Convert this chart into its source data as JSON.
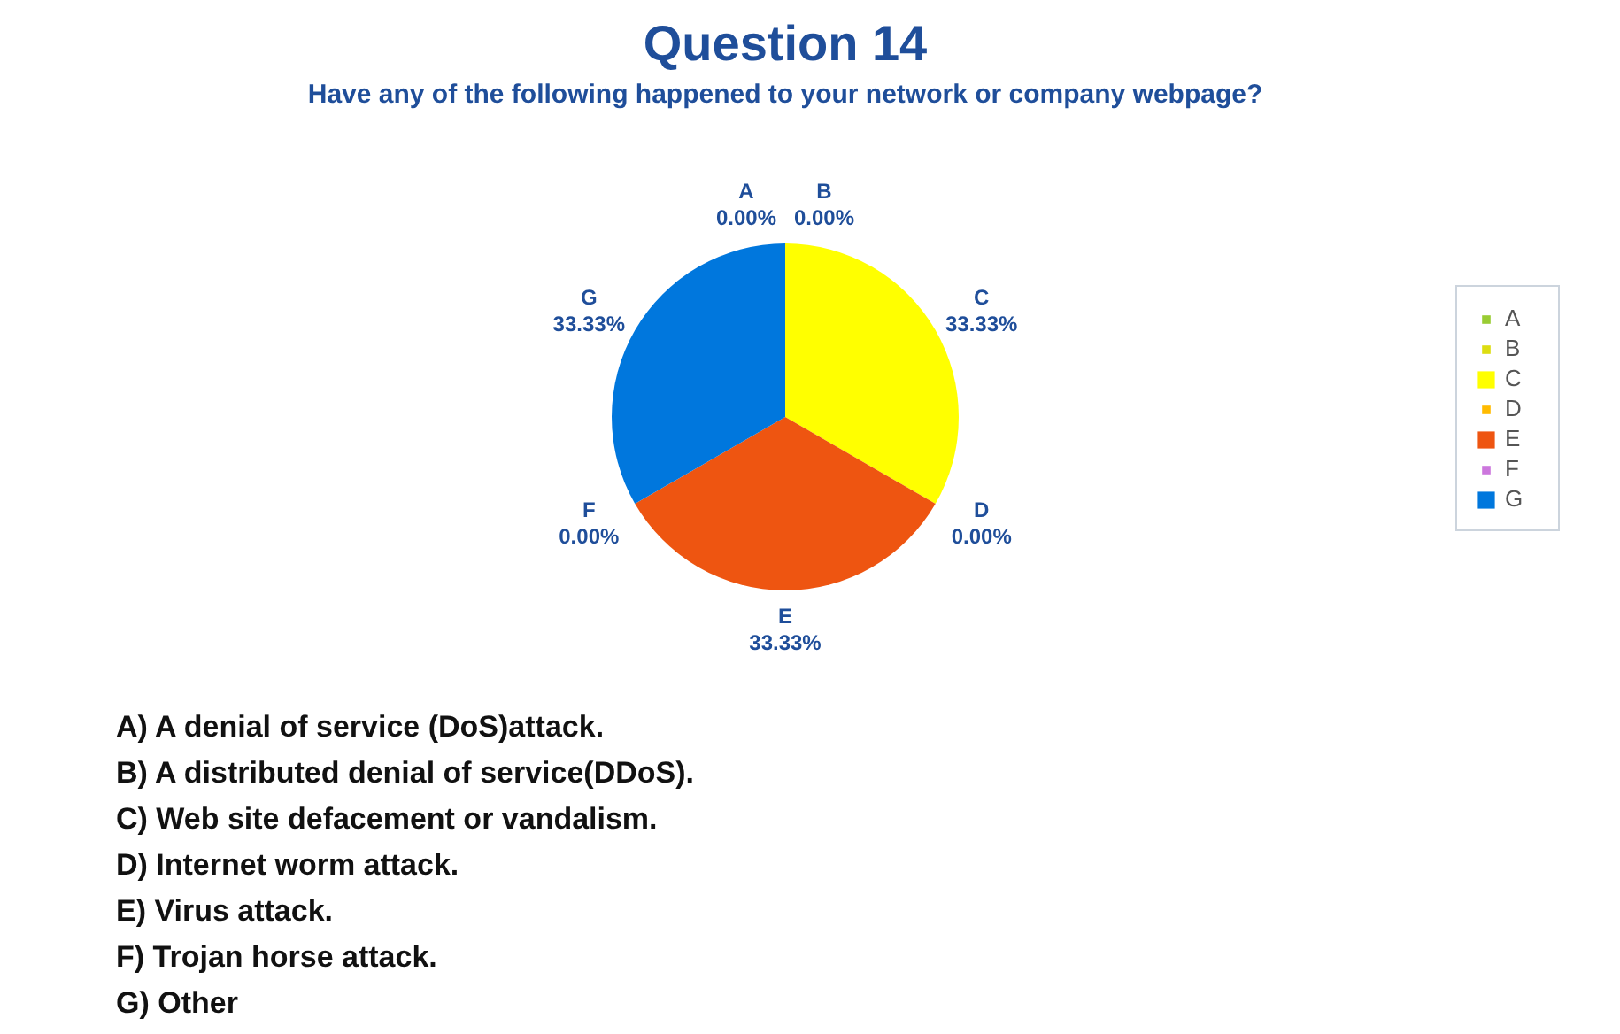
{
  "chart_data": {
    "type": "pie",
    "title": "Question 14",
    "subtitle": "Have any of the following happened to your network or company webpage?",
    "categories": [
      "A",
      "B",
      "C",
      "D",
      "E",
      "F",
      "G"
    ],
    "values": [
      0,
      0,
      33.33,
      0,
      33.33,
      0,
      33.33
    ],
    "value_labels": [
      "0.00%",
      "0.00%",
      "33.33%",
      "0.00%",
      "33.33%",
      "0.00%",
      "33.33%"
    ],
    "colors": [
      "#99cc33",
      "#dddd11",
      "#ffff00",
      "#ffbb00",
      "#ee5511",
      "#cc77dd",
      "#0077dd"
    ],
    "legend": "right",
    "annotations": [
      "A) A denial of service (DoS)attack.",
      "B) A distributed denial of service(DDoS).",
      "C) Web site defacement or vandalism.",
      "D) Internet worm attack.",
      "E) Virus attack.",
      "F) Trojan horse attack.",
      "G) Other"
    ]
  }
}
